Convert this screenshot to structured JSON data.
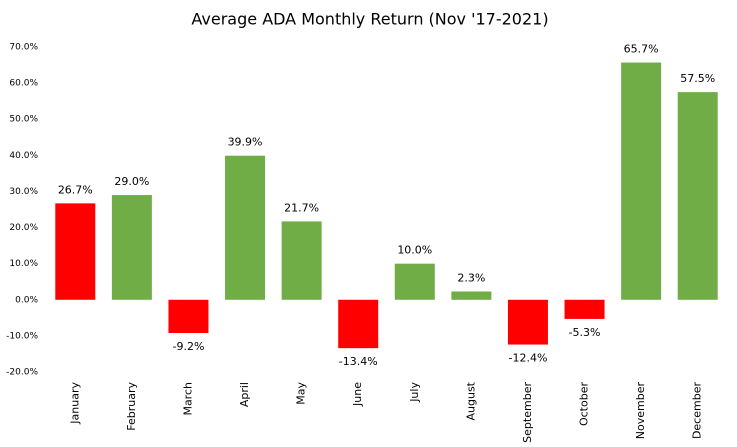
{
  "chart_data": {
    "type": "bar",
    "title": "Average ADA Monthly Return (Nov '17-2021)",
    "categories": [
      "January",
      "February",
      "March",
      "April",
      "May",
      "June",
      "July",
      "August",
      "September",
      "October",
      "November",
      "December"
    ],
    "values": [
      26.7,
      29.0,
      -9.2,
      39.9,
      21.7,
      -13.4,
      10.0,
      2.3,
      -12.4,
      -5.3,
      65.7,
      57.5
    ],
    "value_labels": [
      "26.7%",
      "29.0%",
      "-9.2%",
      "39.9%",
      "21.7%",
      "-13.4%",
      "10.0%",
      "2.3%",
      "-12.4%",
      "-5.3%",
      "65.7%",
      "57.5%"
    ],
    "colors": [
      "#ff0000",
      "#70ad47",
      "#ff0000",
      "#70ad47",
      "#70ad47",
      "#ff0000",
      "#70ad47",
      "#70ad47",
      "#ff0000",
      "#ff0000",
      "#70ad47",
      "#70ad47"
    ],
    "ylim": [
      -20,
      70
    ],
    "yticks": [
      {
        "value": -20,
        "label": "-20.0%"
      },
      {
        "value": -10,
        "label": "-10.0%"
      },
      {
        "value": 0,
        "label": "0.0%"
      },
      {
        "value": 10,
        "label": "10.0%"
      },
      {
        "value": 20,
        "label": "20.0%"
      },
      {
        "value": 30,
        "label": "30.0%"
      },
      {
        "value": 40,
        "label": "40.0%"
      },
      {
        "value": 50,
        "label": "50.0%"
      },
      {
        "value": 60,
        "label": "60.0%"
      },
      {
        "value": 70,
        "label": "70.0%"
      }
    ],
    "grid": false
  }
}
